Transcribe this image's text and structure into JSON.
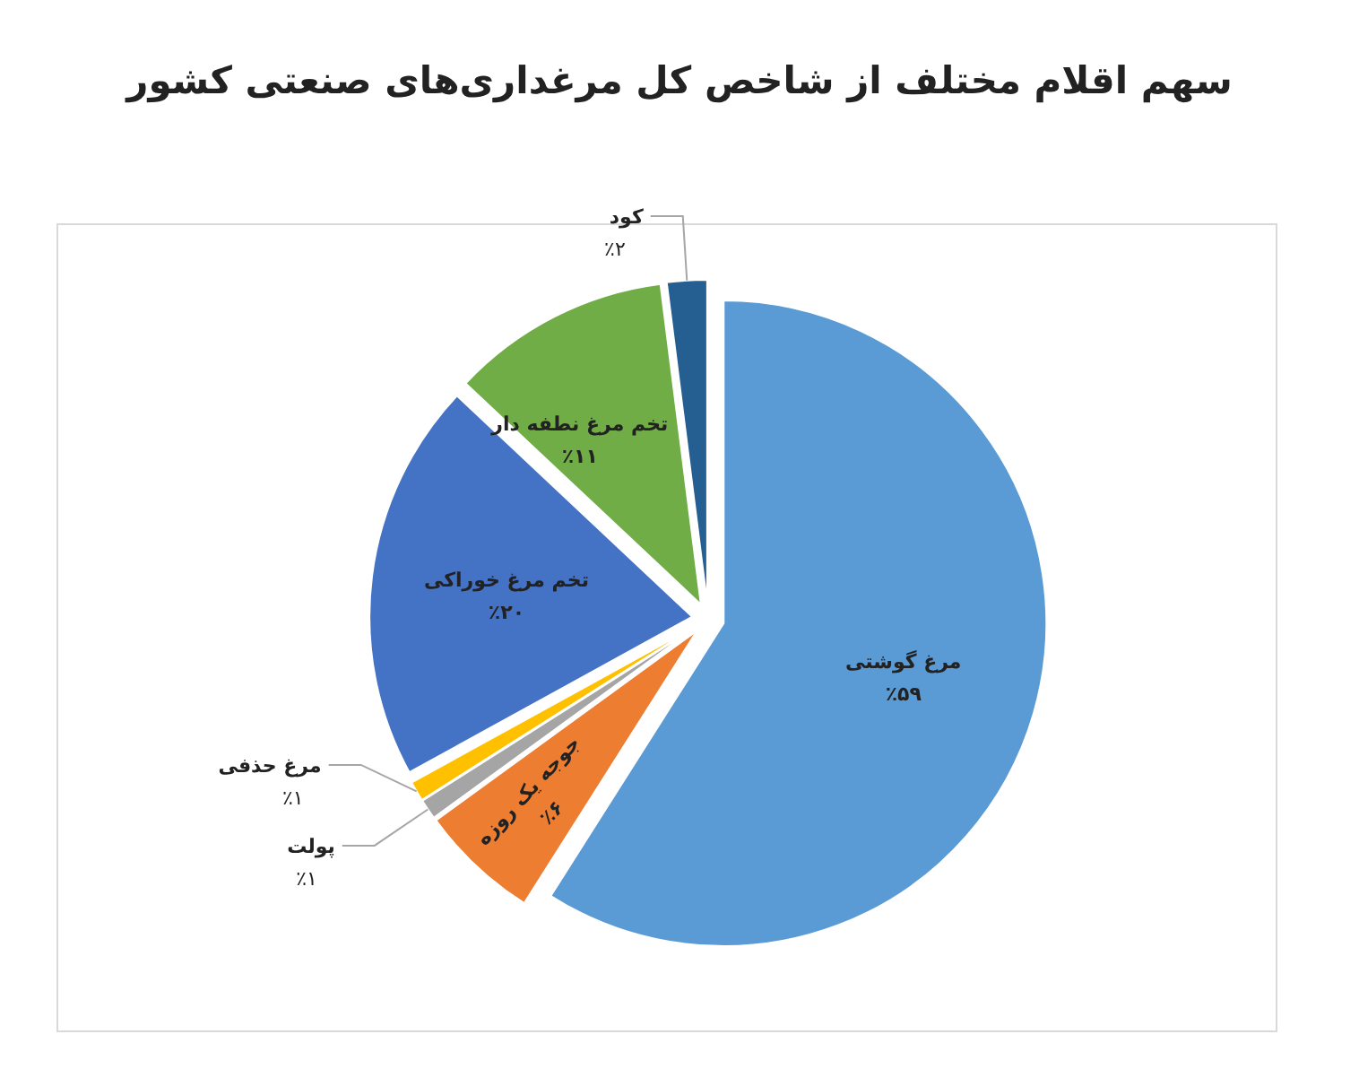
{
  "chart_data": {
    "type": "pie",
    "title": "سهم اقلام مختلف از شاخص کل مرغداری‌های صنعتی کشور",
    "categories": [
      "مرغ گوشتی",
      "جوجه یک روزه",
      "پولت",
      "مرغ حذفی",
      "تخم مرغ خوراکی",
      "تخم مرغ نطفه دار",
      "کود"
    ],
    "values": [
      59,
      6,
      1,
      1,
      20,
      11,
      2
    ],
    "value_labels": [
      "٪۵۹",
      "٪۶",
      "٪۱",
      "٪۱",
      "٪۲۰",
      "٪۱۱",
      "٪۲"
    ],
    "colors": [
      "#5b9bd5",
      "#ed7d31",
      "#a5a5a5",
      "#ffc000",
      "#4472c4",
      "#70ad47",
      "#255e91"
    ],
    "legend": false
  }
}
